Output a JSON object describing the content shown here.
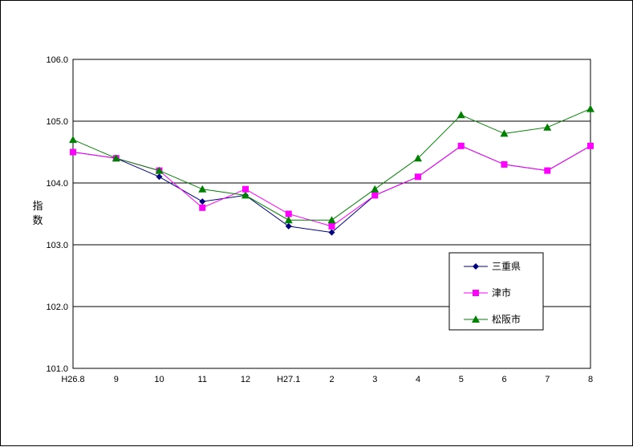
{
  "chart_data": {
    "type": "line",
    "categories": [
      "H26.8",
      "9",
      "10",
      "11",
      "12",
      "H27.1",
      "2",
      "3",
      "4",
      "5",
      "6",
      "7",
      "8"
    ],
    "ylabel": "指数",
    "ylim": [
      101.0,
      106.0
    ],
    "yticks": [
      "101.0",
      "102.0",
      "103.0",
      "104.0",
      "105.0",
      "106.0"
    ],
    "grid": "horizontal",
    "legend_position": "right",
    "series": [
      {
        "name": "三重県",
        "color": "#000080",
        "marker": "diamond",
        "values": [
          104.5,
          104.4,
          104.1,
          103.7,
          103.8,
          103.3,
          103.2,
          103.8,
          104.1,
          104.6,
          104.3,
          104.2,
          104.6
        ]
      },
      {
        "name": "津市",
        "color": "#ff00ff",
        "marker": "square",
        "values": [
          104.5,
          104.4,
          104.2,
          103.6,
          103.9,
          103.5,
          103.3,
          103.8,
          104.1,
          104.6,
          104.3,
          104.2,
          104.6
        ]
      },
      {
        "name": "松阪市",
        "color": "#008000",
        "marker": "triangle",
        "values": [
          104.7,
          104.4,
          104.2,
          103.9,
          103.8,
          103.4,
          103.4,
          103.9,
          104.4,
          105.1,
          104.8,
          104.9,
          105.2
        ]
      }
    ]
  }
}
